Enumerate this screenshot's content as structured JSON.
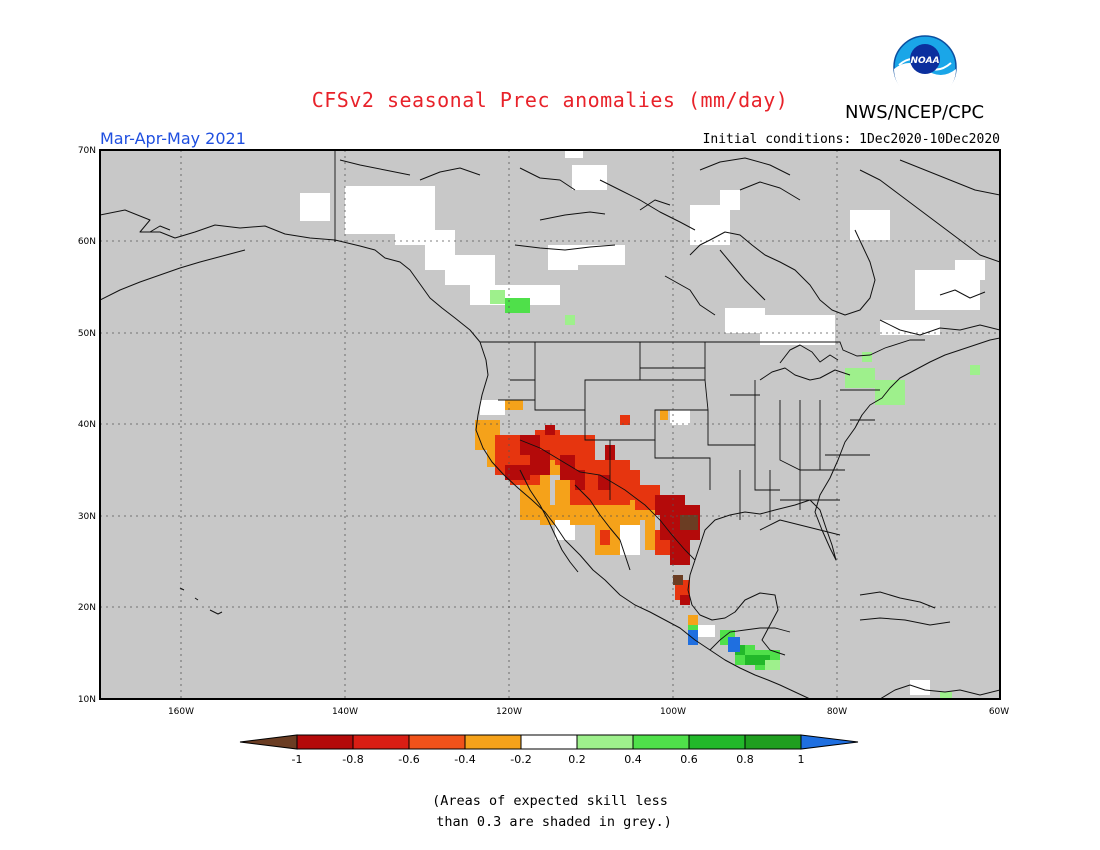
{
  "header": {
    "title": "CFSv2 seasonal Prec anomalies (mm/day)",
    "organization": "NWS/NCEP/CPC",
    "logo_text": "NOAA",
    "season": "Mar-Apr-May 2021",
    "initial_conditions": "Initial conditions: 1Dec2020-10Dec2020"
  },
  "axes": {
    "lat_labels": [
      "70N",
      "60N",
      "50N",
      "40N",
      "30N",
      "20N",
      "10N"
    ],
    "lon_labels": [
      "160W",
      "140W",
      "120W",
      "100W",
      "80W",
      "60W"
    ]
  },
  "colorbar": {
    "tick_labels": [
      "-1",
      "-0.8",
      "-0.6",
      "-0.4",
      "-0.2",
      "0.2",
      "0.4",
      "0.6",
      "0.8",
      "1"
    ],
    "low_extend_color": "#6b3d23",
    "high_extend_color": "#1f6fe0",
    "bin_colors": [
      "#b40a0a",
      "#e6350f",
      "#f5a21a",
      "#ffffff",
      "#9ef08c",
      "#4fe04a",
      "#22b82a",
      "#1f9e1f"
    ]
  },
  "colors": {
    "no_skill_grey": "#c8c8c8",
    "dry_strong": "#b40a0a",
    "dry_moderate": "#e6350f",
    "dry_weak": "#f5a21a",
    "near_normal": "#ffffff",
    "wet_weak": "#9ef08c",
    "wet_moderate": "#4fe04a",
    "extreme_dry": "#6b3d23",
    "extreme_wet": "#1f6fe0"
  },
  "footnote": "(Areas of expected skill less\n than 0.3 are shaded in grey.)"
}
